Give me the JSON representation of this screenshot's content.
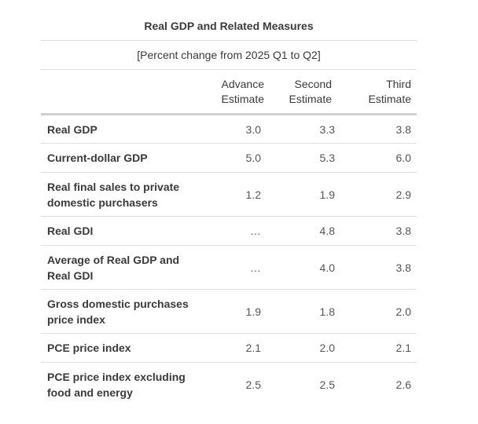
{
  "table": {
    "title": "Real GDP and Related Measures",
    "subtitle": "[Percent change from 2025 Q1 to Q2]",
    "columns": [
      {
        "line1": "Advance",
        "line2": "Estimate"
      },
      {
        "line1": "Second",
        "line2": "Estimate"
      },
      {
        "line1": "Third",
        "line2": "Estimate"
      }
    ],
    "rows": [
      {
        "label": "Real GDP",
        "advance": "3.0",
        "second": "3.3",
        "third": "3.8"
      },
      {
        "label": "Current-dollar GDP",
        "advance": "5.0",
        "second": "5.3",
        "third": "6.0"
      },
      {
        "label_line1": "Real final sales to private",
        "label_line2": "domestic purchasers",
        "advance": "1.2",
        "second": "1.9",
        "third": "2.9"
      },
      {
        "label": "Real GDI",
        "advance": "…",
        "second": "4.8",
        "third": "3.8"
      },
      {
        "label_line1": "Average of Real GDP and",
        "label_line2": "Real GDI",
        "advance": "…",
        "second": "4.0",
        "third": "3.8"
      },
      {
        "label_line1": "Gross domestic purchases",
        "label_line2": "price index",
        "advance": "1.9",
        "second": "1.8",
        "third": "2.0"
      },
      {
        "label": "PCE price index",
        "advance": "2.1",
        "second": "2.0",
        "third": "2.1"
      },
      {
        "label_line1": "PCE price index excluding",
        "label_line2": "food and energy",
        "advance": "2.5",
        "second": "2.5",
        "third": "2.6"
      }
    ]
  }
}
